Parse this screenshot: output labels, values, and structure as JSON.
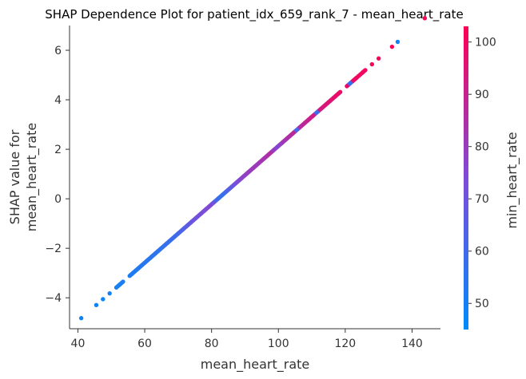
{
  "chart_data": {
    "type": "scatter",
    "title": "SHAP Dependence Plot for patient_idx_659_rank_7 - mean_heart_rate",
    "xlabel": "mean_heart_rate",
    "ylabel_lines": [
      "SHAP value for",
      "mean_heart_rate"
    ],
    "xlim": [
      37.5,
      148.5
    ],
    "ylim": [
      -5.25,
      7.0
    ],
    "x_ticks": [
      40,
      60,
      80,
      100,
      120,
      140
    ],
    "y_ticks": [
      -4,
      -2,
      0,
      2,
      4,
      6
    ],
    "grid": false,
    "slope": 0.1179,
    "intercept": -9.657,
    "colorbar": {
      "label": "min_heart_rate",
      "range": [
        45,
        103
      ],
      "ticks": [
        50,
        60,
        70,
        80,
        90,
        100
      ],
      "colors": [
        "#008bfb",
        "#7e4bd9",
        "#ff0052"
      ]
    },
    "points": [
      {
        "x": 41,
        "c": 48
      },
      {
        "x": 45.5,
        "c": 49
      },
      {
        "x": 47.5,
        "c": 48
      },
      {
        "x": 49.5,
        "c": 50
      },
      {
        "x": 51.5,
        "c": 50
      },
      {
        "x": 52.5,
        "c": 51
      },
      {
        "x": 53.5,
        "c": 51
      },
      {
        "x": 55.5,
        "c": 52
      },
      {
        "x": 56.5,
        "c": 52
      },
      {
        "x": 57.5,
        "c": 53
      },
      {
        "x": 58.5,
        "c": 53
      },
      {
        "x": 59.5,
        "c": 54
      },
      {
        "x": 60.5,
        "c": 54
      },
      {
        "x": 61.5,
        "c": 55
      },
      {
        "x": 62.5,
        "c": 55
      },
      {
        "x": 63.5,
        "c": 56
      },
      {
        "x": 64.5,
        "c": 56
      },
      {
        "x": 65.5,
        "c": 57
      },
      {
        "x": 66.5,
        "c": 58
      },
      {
        "x": 67.5,
        "c": 58
      },
      {
        "x": 68.5,
        "c": 59
      },
      {
        "x": 69.5,
        "c": 60
      },
      {
        "x": 70.5,
        "c": 62
      },
      {
        "x": 71.5,
        "c": 64
      },
      {
        "x": 72.5,
        "c": 66
      },
      {
        "x": 73.5,
        "c": 68
      },
      {
        "x": 74.5,
        "c": 70
      },
      {
        "x": 75.5,
        "c": 71
      },
      {
        "x": 76.5,
        "c": 72
      },
      {
        "x": 77.5,
        "c": 73
      },
      {
        "x": 78.5,
        "c": 74
      },
      {
        "x": 79.5,
        "c": 75
      },
      {
        "x": 80.5,
        "c": 70
      },
      {
        "x": 81.5,
        "c": 60
      },
      {
        "x": 82.5,
        "c": 57
      },
      {
        "x": 83.5,
        "c": 58
      },
      {
        "x": 84.5,
        "c": 62
      },
      {
        "x": 85.5,
        "c": 66
      },
      {
        "x": 86.5,
        "c": 70
      },
      {
        "x": 87.5,
        "c": 73
      },
      {
        "x": 88.5,
        "c": 76
      },
      {
        "x": 89.5,
        "c": 78
      },
      {
        "x": 90.5,
        "c": 79
      },
      {
        "x": 91.5,
        "c": 80
      },
      {
        "x": 92.5,
        "c": 81
      },
      {
        "x": 93.5,
        "c": 80
      },
      {
        "x": 94.5,
        "c": 82
      },
      {
        "x": 95.5,
        "c": 83
      },
      {
        "x": 96.5,
        "c": 84
      },
      {
        "x": 97.5,
        "c": 86
      },
      {
        "x": 98.5,
        "c": 80
      },
      {
        "x": 99.5,
        "c": 76
      },
      {
        "x": 100.5,
        "c": 78
      },
      {
        "x": 101.5,
        "c": 82
      },
      {
        "x": 102.5,
        "c": 84
      },
      {
        "x": 103.5,
        "c": 86
      },
      {
        "x": 104.5,
        "c": 88
      },
      {
        "x": 105.5,
        "c": 60
      },
      {
        "x": 106.5,
        "c": 86
      },
      {
        "x": 107.5,
        "c": 88
      },
      {
        "x": 108.5,
        "c": 90
      },
      {
        "x": 109.5,
        "c": 91
      },
      {
        "x": 110.5,
        "c": 92
      },
      {
        "x": 111.5,
        "c": 58
      },
      {
        "x": 112.5,
        "c": 93
      },
      {
        "x": 113.5,
        "c": 94
      },
      {
        "x": 114.5,
        "c": 95
      },
      {
        "x": 115.5,
        "c": 96
      },
      {
        "x": 116.5,
        "c": 97
      },
      {
        "x": 117.5,
        "c": 98
      },
      {
        "x": 118.5,
        "c": 98
      },
      {
        "x": 120.5,
        "c": 99
      },
      {
        "x": 121.5,
        "c": 56
      },
      {
        "x": 122.5,
        "c": 99
      },
      {
        "x": 123.5,
        "c": 100
      },
      {
        "x": 125,
        "c": 100
      },
      {
        "x": 126,
        "c": 100
      },
      {
        "x": 128,
        "c": 101
      },
      {
        "x": 130,
        "c": 101
      },
      {
        "x": 134,
        "c": 102
      },
      {
        "x": 135.7,
        "c": 48
      },
      {
        "x": 143.8,
        "c": 102
      }
    ]
  }
}
